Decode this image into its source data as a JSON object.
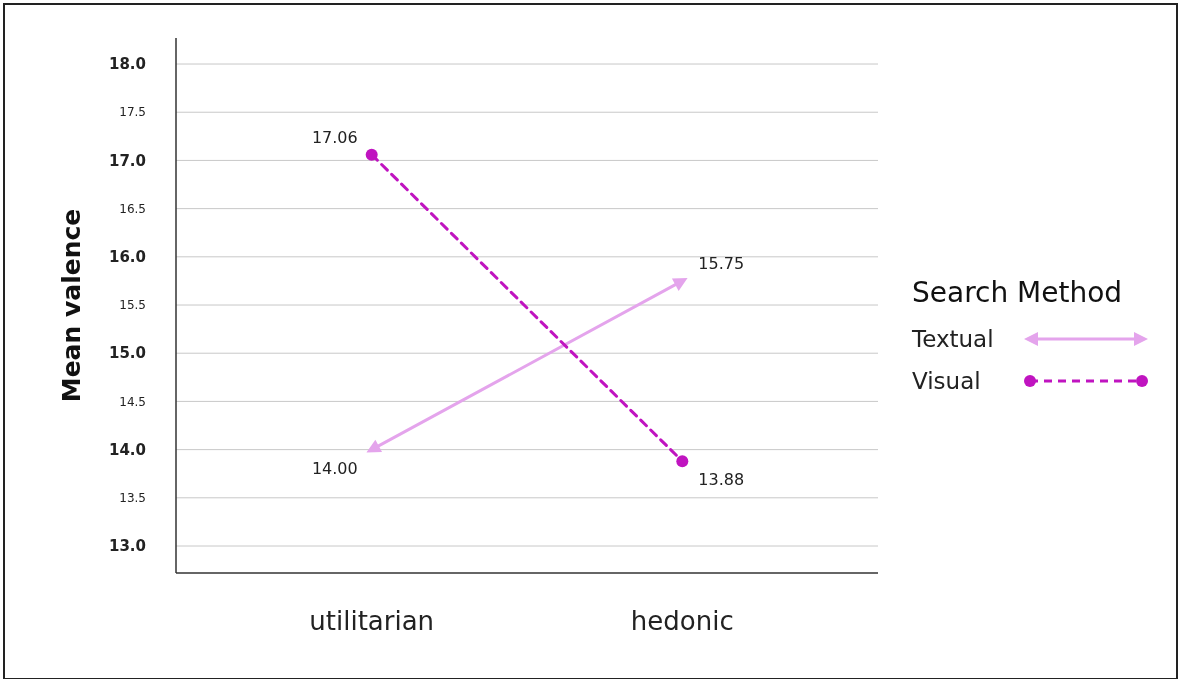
{
  "chart_data": {
    "type": "line",
    "categories": [
      "utilitarian",
      "hedonic"
    ],
    "series": [
      {
        "name": "Textual",
        "color": "#e4a4ec",
        "values": [
          14.0,
          15.75
        ],
        "value_labels": [
          "14.00",
          "15.75"
        ],
        "marker": "triangle",
        "line_style": "solid"
      },
      {
        "name": "Visual",
        "color": "#c014c0",
        "values": [
          17.06,
          13.88
        ],
        "value_labels": [
          "17.06",
          "13.88"
        ],
        "marker": "circle",
        "line_style": "dashed"
      }
    ],
    "ylabel": "Mean valence",
    "legend_title": "Search Method",
    "legend": "right",
    "grid": "y",
    "ylim": [
      12.72,
      18.27
    ],
    "yticks": [
      {
        "value": 13,
        "label": "13.0"
      },
      {
        "value": 13.5,
        "label": "13.5"
      },
      {
        "value": 14,
        "label": "14.0"
      },
      {
        "value": 14.5,
        "label": "14.5"
      },
      {
        "value": 15,
        "label": "15.0"
      },
      {
        "value": 15.5,
        "label": "15.5"
      },
      {
        "value": 16,
        "label": "16.0"
      },
      {
        "value": 16.5,
        "label": "16.5"
      },
      {
        "value": 17,
        "label": "17.0"
      },
      {
        "value": 17.5,
        "label": "17.5"
      },
      {
        "value": 18,
        "label": "18.0"
      }
    ]
  }
}
